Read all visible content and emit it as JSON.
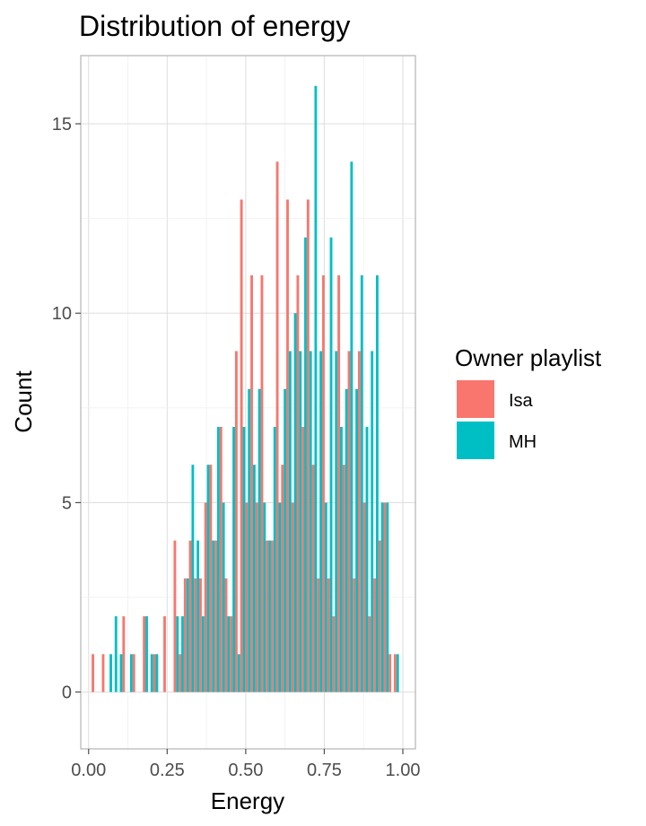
{
  "chart_data": {
    "type": "bar",
    "title": "Distribution of energy",
    "xlabel": "Energy",
    "ylabel": "Count",
    "xlim": [
      -0.025,
      1.04
    ],
    "ylim": [
      -1.5,
      16.8
    ],
    "x_ticks": [
      0.0,
      0.25,
      0.5,
      0.75,
      1.0
    ],
    "x_tick_labels": [
      "0.00",
      "0.25",
      "0.50",
      "0.75",
      "1.00"
    ],
    "y_ticks": [
      0,
      5,
      10,
      15
    ],
    "y_tick_labels": [
      "0",
      "5",
      "10",
      "15"
    ],
    "grid": true,
    "legend": {
      "title": "Owner playlist",
      "position": "right",
      "entries": [
        {
          "name": "Isa",
          "color": "#F8766D"
        },
        {
          "name": "MH",
          "color": "#00BFC4"
        }
      ]
    },
    "bins": [
      0.0178,
      0.0341,
      0.0504,
      0.0667,
      0.083,
      0.0993,
      0.1156,
      0.1319,
      0.1482,
      0.1645,
      0.1808,
      0.1971,
      0.2134,
      0.2297,
      0.246,
      0.2623,
      0.2786,
      0.2949,
      0.3112,
      0.3275,
      0.3438,
      0.3601,
      0.3764,
      0.3927,
      0.409,
      0.4253,
      0.4416,
      0.4579,
      0.4742,
      0.4905,
      0.5068,
      0.5231,
      0.5394,
      0.5557,
      0.572,
      0.5883,
      0.6046,
      0.6209,
      0.6372,
      0.6535,
      0.6698,
      0.6861,
      0.7024,
      0.7187,
      0.735,
      0.7513,
      0.7676,
      0.7839,
      0.8002,
      0.8165,
      0.8328,
      0.8491,
      0.8654,
      0.8817,
      0.898,
      0.9143,
      0.9306,
      0.9469,
      0.9632,
      0.9795,
      0.9958
    ],
    "series": [
      {
        "name": "Isa",
        "color": "#F8766D",
        "values": [
          1,
          0,
          1,
          0,
          0,
          0,
          2,
          0,
          1,
          0,
          2,
          0,
          1,
          0,
          2,
          0,
          4,
          1,
          3,
          4,
          3,
          3,
          5,
          6,
          4,
          7,
          3,
          2,
          9,
          13,
          5,
          11,
          5,
          11,
          4,
          4,
          14,
          6,
          13,
          5,
          11,
          7,
          13,
          6,
          3,
          11,
          3,
          2,
          11,
          6,
          9,
          3,
          9,
          5,
          2,
          3,
          4,
          5,
          1,
          1,
          0
        ]
      },
      {
        "name": "MH",
        "color": "#00BFC4",
        "values": [
          0,
          0,
          0,
          1,
          2,
          1,
          0,
          1,
          0,
          0,
          2,
          1,
          1,
          0,
          0,
          0,
          2,
          2,
          3,
          6,
          4,
          2,
          6,
          4,
          7,
          5,
          2,
          7,
          1,
          7,
          8,
          6,
          8,
          5,
          4,
          7,
          5,
          8,
          9,
          10,
          9,
          12,
          9,
          16,
          9,
          5,
          12,
          9,
          7,
          8,
          14,
          8,
          11,
          7,
          9,
          11,
          5,
          5,
          0,
          1,
          0
        ]
      }
    ]
  }
}
